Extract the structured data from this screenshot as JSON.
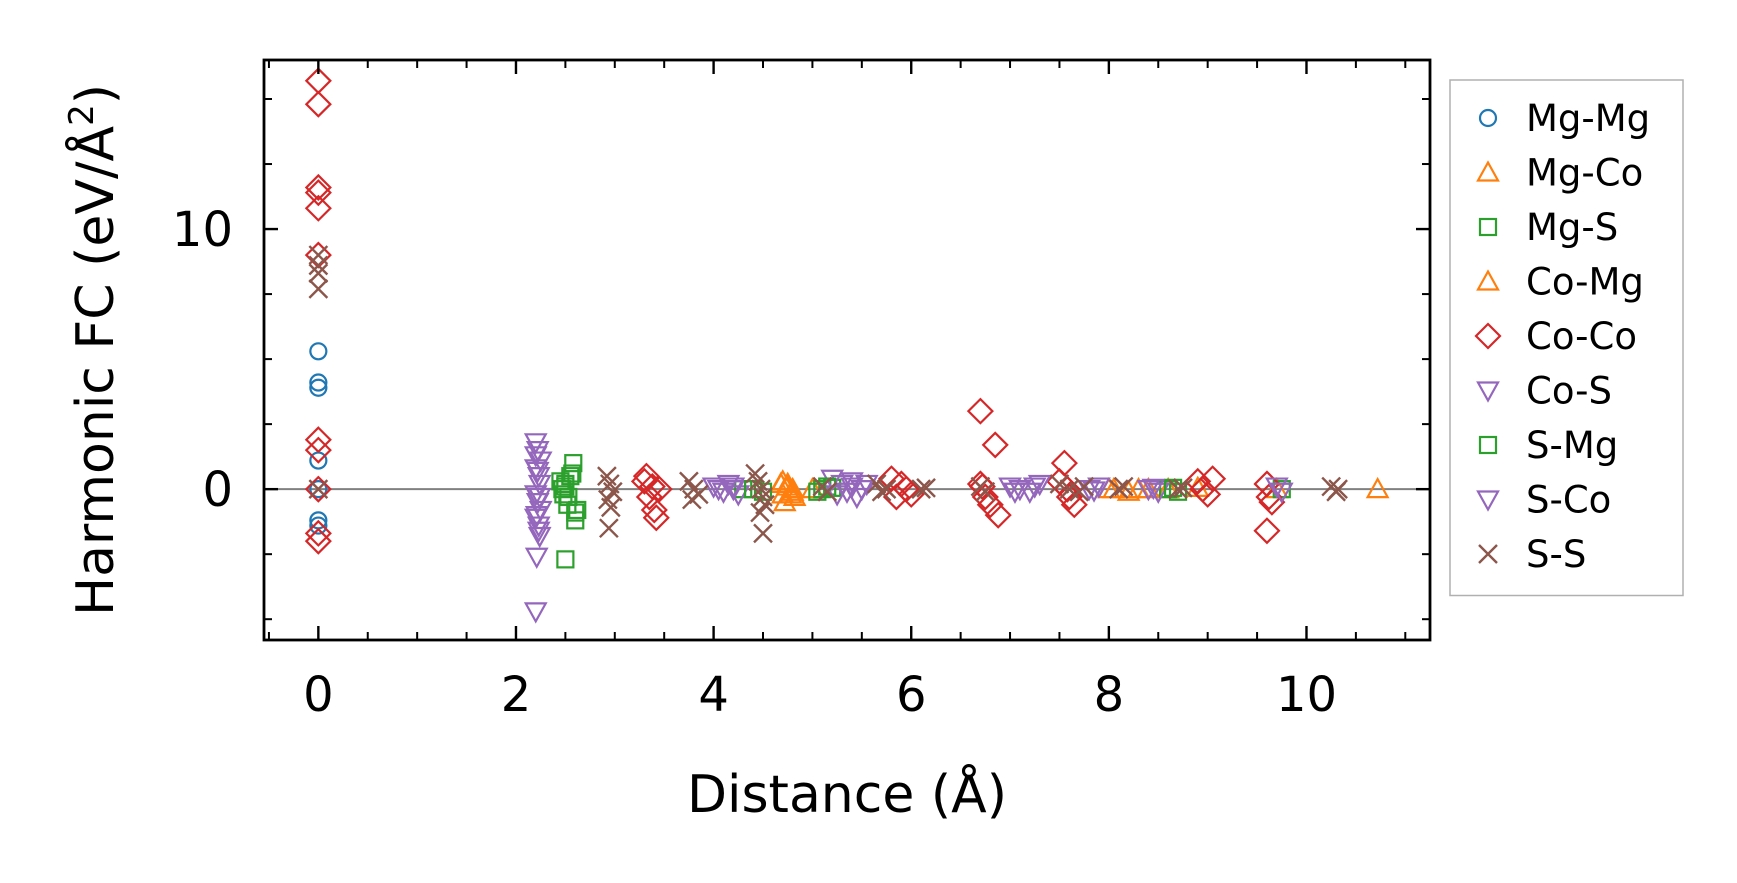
{
  "chart_data": {
    "type": "scatter",
    "xlabel": "Distance (Å)",
    "ylabel_main": "Harmonic FC (eV/Å",
    "ylabel_sup": "2",
    "ylabel_end": ")",
    "xlim": [
      -0.55,
      11.25
    ],
    "ylim": [
      -5.8,
      16.5
    ],
    "xticks": [
      0,
      2,
      4,
      6,
      8,
      10
    ],
    "xtick_labels": [
      "0",
      "2",
      "4",
      "6",
      "8",
      "10"
    ],
    "yticks": [
      0,
      10
    ],
    "ytick_labels": [
      "0",
      "10"
    ],
    "hline": 0,
    "legend_position": "right",
    "series": [
      {
        "name": "Mg-Mg",
        "marker": "circle",
        "color": "#1f77b4",
        "points": [
          [
            0,
            5.3
          ],
          [
            0,
            4.1
          ],
          [
            0,
            3.9
          ],
          [
            0,
            1.1
          ],
          [
            0,
            -1.2
          ],
          [
            0,
            -1.4
          ],
          [
            0,
            0
          ]
        ]
      },
      {
        "name": "Mg-Co",
        "marker": "triangle-up",
        "color": "#ff7f0e",
        "points": [
          [
            4.7,
            0.3
          ],
          [
            4.72,
            -0.5
          ],
          [
            4.75,
            0.1
          ],
          [
            4.78,
            -0.2
          ],
          [
            4.8,
            0.0
          ],
          [
            4.68,
            0.2
          ],
          [
            4.82,
            -0.3
          ],
          [
            5.0,
            0.0
          ],
          [
            8.0,
            0.0
          ],
          [
            8.2,
            -0.1
          ],
          [
            8.4,
            0.0
          ],
          [
            8.6,
            0.0
          ],
          [
            8.9,
            0.05
          ],
          [
            9.7,
            0.0
          ]
        ]
      },
      {
        "name": "Mg-S",
        "marker": "square",
        "color": "#2ca02c",
        "points": [
          [
            2.45,
            0.3
          ],
          [
            2.48,
            -0.2
          ],
          [
            2.5,
            0.1
          ],
          [
            2.52,
            -0.6
          ],
          [
            2.55,
            0.5
          ],
          [
            2.58,
            1.0
          ],
          [
            2.6,
            -1.2
          ],
          [
            2.62,
            -0.8
          ],
          [
            2.5,
            -2.7
          ],
          [
            2.47,
            0.0
          ],
          [
            4.3,
            0.0
          ],
          [
            4.5,
            -0.1
          ],
          [
            5.1,
            0.0
          ],
          [
            5.2,
            0.05
          ],
          [
            8.6,
            0.0
          ],
          [
            8.7,
            -0.1
          ],
          [
            9.75,
            0.0
          ]
        ]
      },
      {
        "name": "Co-Mg",
        "marker": "triangle-up",
        "color": "#ff7f0e",
        "points": [
          [
            4.7,
            -0.2
          ],
          [
            4.75,
            0.2
          ],
          [
            4.8,
            -0.1
          ],
          [
            8.05,
            0.0
          ],
          [
            8.3,
            0.0
          ],
          [
            10.72,
            0.0
          ]
        ]
      },
      {
        "name": "Co-Co",
        "marker": "diamond",
        "color": "#d62728",
        "points": [
          [
            0,
            15.7
          ],
          [
            0,
            14.8
          ],
          [
            0,
            11.6
          ],
          [
            0,
            11.4
          ],
          [
            0,
            10.8
          ],
          [
            0,
            9.0
          ],
          [
            0,
            1.9
          ],
          [
            0,
            1.5
          ],
          [
            0,
            -1.7
          ],
          [
            0,
            -2.0
          ],
          [
            0,
            0
          ],
          [
            3.3,
            0.3
          ],
          [
            3.35,
            -0.3
          ],
          [
            3.38,
            0.1
          ],
          [
            3.4,
            -0.8
          ],
          [
            3.42,
            -1.1
          ],
          [
            3.32,
            0.5
          ],
          [
            3.45,
            0.0
          ],
          [
            5.8,
            0.4
          ],
          [
            5.85,
            -0.3
          ],
          [
            5.9,
            0.2
          ],
          [
            5.95,
            0.0
          ],
          [
            6.0,
            -0.2
          ],
          [
            6.7,
            3.0
          ],
          [
            6.85,
            1.7
          ],
          [
            6.7,
            0.2
          ],
          [
            6.75,
            -0.3
          ],
          [
            6.8,
            -0.6
          ],
          [
            6.88,
            -1.0
          ],
          [
            6.72,
            0.1
          ],
          [
            7.55,
            1.0
          ],
          [
            7.5,
            0.3
          ],
          [
            7.6,
            -0.3
          ],
          [
            7.65,
            -0.6
          ],
          [
            7.58,
            0.0
          ],
          [
            8.9,
            0.3
          ],
          [
            8.95,
            0.0
          ],
          [
            9.0,
            -0.2
          ],
          [
            9.05,
            0.4
          ],
          [
            9.6,
            0.2
          ],
          [
            9.62,
            -0.3
          ],
          [
            9.65,
            -0.5
          ],
          [
            9.6,
            -1.6
          ]
        ]
      },
      {
        "name": "Co-S",
        "marker": "triangle-down",
        "color": "#9467bd",
        "points": [
          [
            2.2,
            1.8
          ],
          [
            2.22,
            1.5
          ],
          [
            2.25,
            1.1
          ],
          [
            2.2,
            0.8
          ],
          [
            2.23,
            0.5
          ],
          [
            2.24,
            0.2
          ],
          [
            2.2,
            -0.2
          ],
          [
            2.22,
            -0.5
          ],
          [
            2.25,
            -0.8
          ],
          [
            2.2,
            -1.1
          ],
          [
            2.23,
            -1.4
          ],
          [
            2.24,
            -1.8
          ],
          [
            2.21,
            -2.6
          ],
          [
            2.2,
            -4.7
          ],
          [
            4.0,
            0.1
          ],
          [
            4.1,
            -0.1
          ],
          [
            4.2,
            0.0
          ],
          [
            4.15,
            0.2
          ],
          [
            4.25,
            -0.2
          ],
          [
            5.2,
            0.4
          ],
          [
            5.3,
            0.2
          ],
          [
            5.35,
            -0.1
          ],
          [
            5.4,
            0.3
          ],
          [
            5.45,
            -0.3
          ],
          [
            5.5,
            0.0
          ],
          [
            7.0,
            0.1
          ],
          [
            7.1,
            0.0
          ],
          [
            7.2,
            -0.1
          ],
          [
            7.3,
            0.2
          ],
          [
            7.8,
            0.0
          ],
          [
            7.9,
            0.1
          ],
          [
            8.4,
            0.0
          ],
          [
            8.5,
            -0.1
          ],
          [
            9.7,
            0.1
          ],
          [
            9.75,
            -0.1
          ]
        ]
      },
      {
        "name": "S-Mg",
        "marker": "square",
        "color": "#2ca02c",
        "points": [
          [
            2.5,
            0.2
          ],
          [
            2.53,
            -0.3
          ],
          [
            2.57,
            0.6
          ],
          [
            2.6,
            -0.9
          ],
          [
            4.4,
            0.0
          ],
          [
            5.05,
            -0.1
          ],
          [
            5.15,
            0.1
          ],
          [
            8.65,
            0.05
          ]
        ]
      },
      {
        "name": "S-Co",
        "marker": "triangle-down",
        "color": "#9467bd",
        "points": [
          [
            2.2,
            1.3
          ],
          [
            2.22,
            0.7
          ],
          [
            2.24,
            -0.3
          ],
          [
            2.21,
            -1.0
          ],
          [
            2.23,
            -1.6
          ],
          [
            4.05,
            0.0
          ],
          [
            4.2,
            0.1
          ],
          [
            5.25,
            -0.2
          ],
          [
            5.4,
            0.1
          ],
          [
            5.55,
            0.2
          ],
          [
            7.05,
            -0.1
          ],
          [
            7.25,
            0.1
          ],
          [
            7.85,
            -0.05
          ],
          [
            8.45,
            0.05
          ]
        ]
      },
      {
        "name": "S-S",
        "marker": "x",
        "color": "#8c564b",
        "points": [
          [
            0,
            9.0
          ],
          [
            0,
            8.6
          ],
          [
            0,
            8.3
          ],
          [
            0,
            7.7
          ],
          [
            0,
            0
          ],
          [
            2.92,
            0.5
          ],
          [
            2.95,
            0.2
          ],
          [
            2.98,
            -0.1
          ],
          [
            2.93,
            -0.4
          ],
          [
            2.96,
            -0.7
          ],
          [
            2.94,
            -1.5
          ],
          [
            3.75,
            0.3
          ],
          [
            3.8,
            0.0
          ],
          [
            3.85,
            -0.2
          ],
          [
            3.78,
            -0.4
          ],
          [
            4.42,
            0.6
          ],
          [
            4.45,
            0.3
          ],
          [
            4.48,
            0.0
          ],
          [
            4.5,
            -0.3
          ],
          [
            4.52,
            -0.6
          ],
          [
            4.47,
            -0.9
          ],
          [
            4.5,
            -1.7
          ],
          [
            5.1,
            0.1
          ],
          [
            5.15,
            -0.1
          ],
          [
            5.65,
            0.2
          ],
          [
            5.7,
            -0.1
          ],
          [
            5.75,
            0.0
          ],
          [
            6.1,
            0.0
          ],
          [
            6.15,
            0.05
          ],
          [
            6.7,
            0.1
          ],
          [
            6.75,
            -0.1
          ],
          [
            7.5,
            0.2
          ],
          [
            7.6,
            0.0
          ],
          [
            7.7,
            -0.1
          ],
          [
            7.75,
            0.1
          ],
          [
            8.1,
            0.0
          ],
          [
            8.15,
            0.1
          ],
          [
            8.7,
            0.0
          ],
          [
            8.75,
            0.05
          ],
          [
            10.25,
            0.1
          ],
          [
            10.3,
            -0.1
          ],
          [
            10.32,
            0.0
          ]
        ]
      }
    ]
  }
}
